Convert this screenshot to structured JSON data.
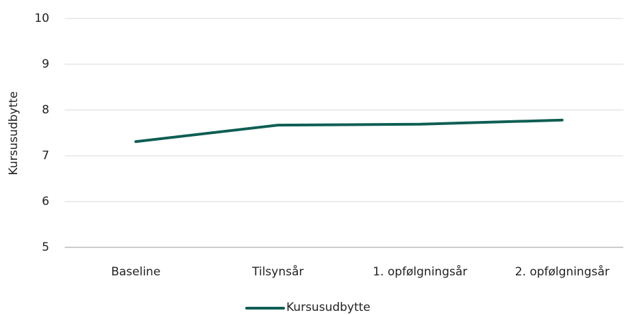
{
  "chart_data": {
    "type": "line",
    "y_label": "Kursusudbytte",
    "categories": [
      "Baseline",
      "Tilsynsår",
      "1. opfølgningsår",
      "2. opfølgningsår"
    ],
    "series": [
      {
        "name": "Kursusudbytte",
        "color": "#0e5e54",
        "values": [
          7.31,
          7.67,
          7.69,
          7.78
        ]
      }
    ],
    "ylim": [
      5,
      10
    ],
    "yticks": [
      5,
      6,
      7,
      8,
      9,
      10
    ],
    "grid": true,
    "legend": "bottom"
  }
}
